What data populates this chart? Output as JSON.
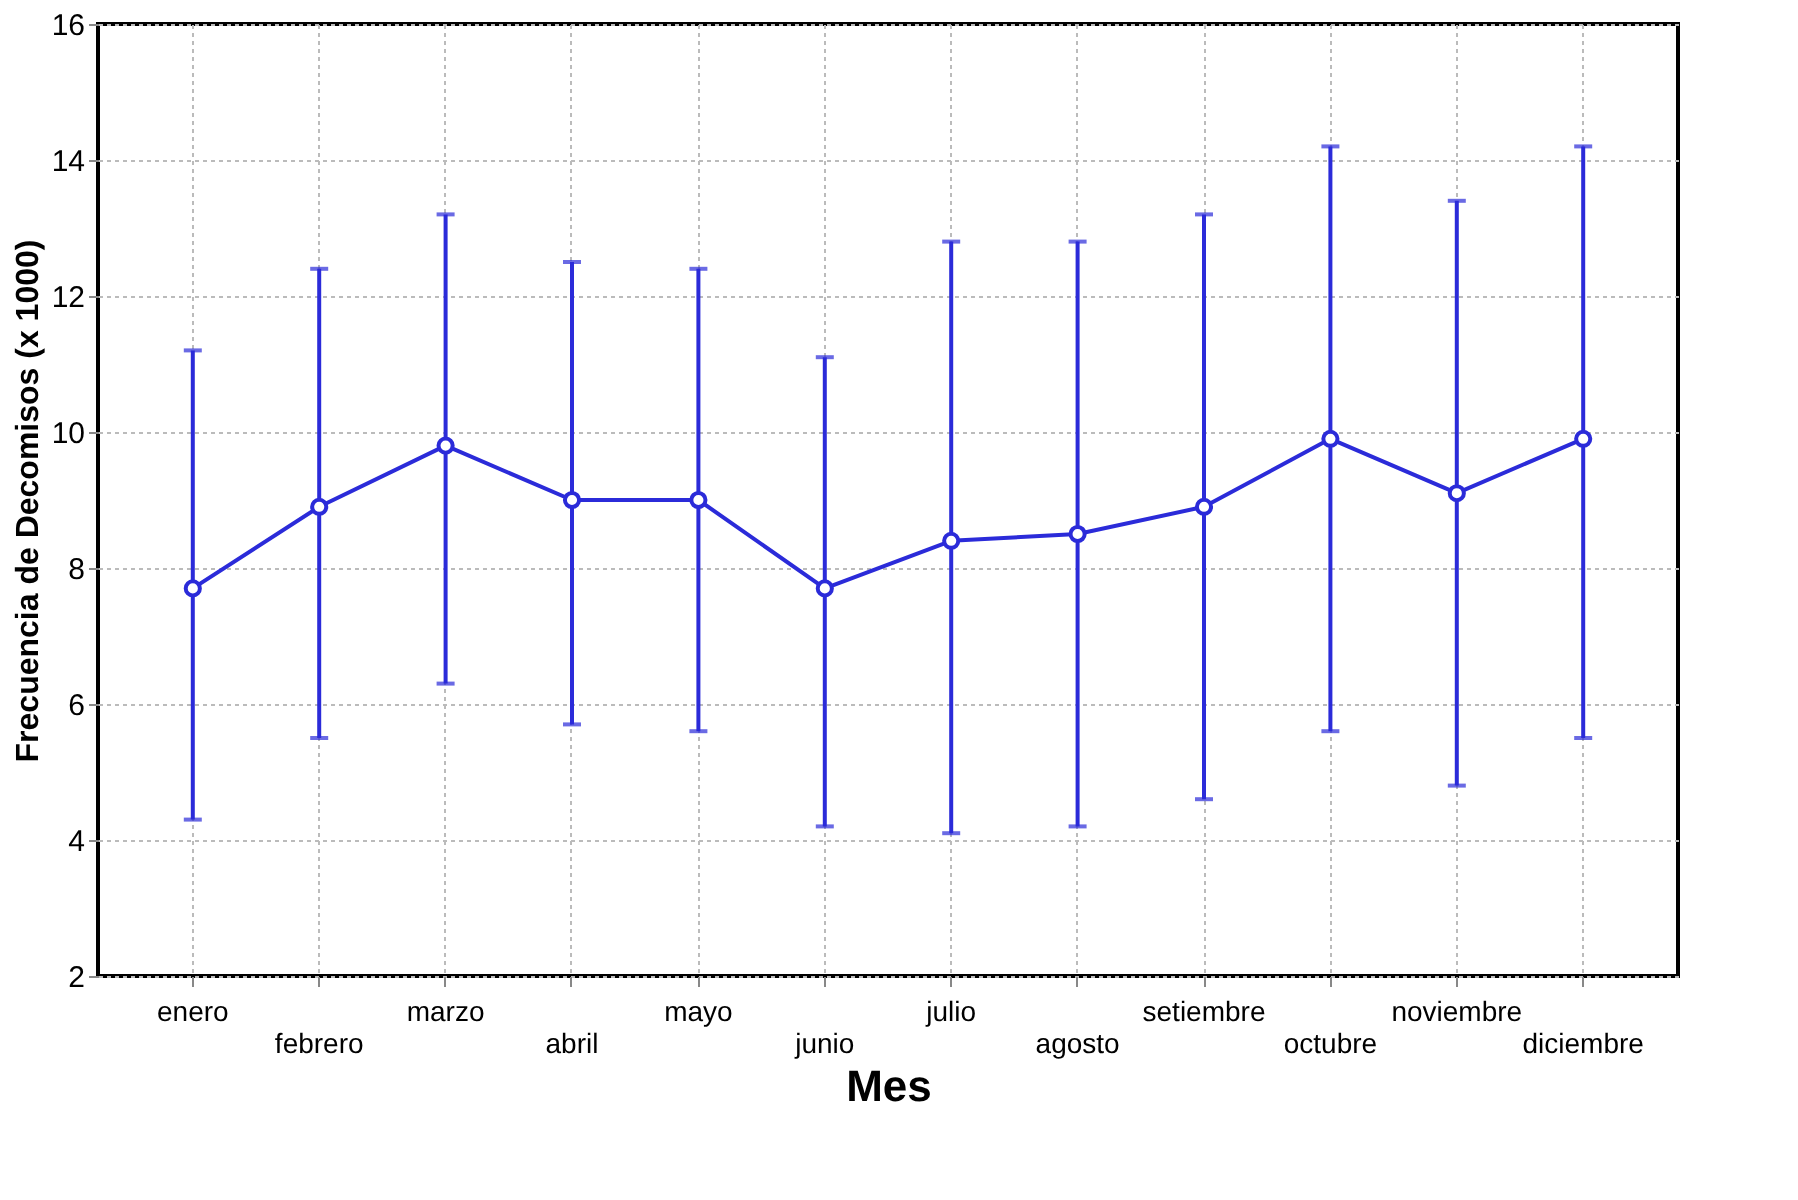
{
  "chart_data": {
    "type": "line",
    "xlabel": "Mes",
    "ylabel": "Frecuencia de Decomisos (x 1000)",
    "categories": [
      "enero",
      "febrero",
      "marzo",
      "abril",
      "mayo",
      "junio",
      "julio",
      "agosto",
      "setiembre",
      "octubre",
      "noviembre",
      "diciembre"
    ],
    "series": [
      {
        "color": "#2b2bd9",
        "values": [
          7.7,
          8.9,
          9.8,
          9.0,
          9.0,
          7.7,
          8.4,
          8.5,
          8.9,
          9.9,
          9.1,
          9.9
        ],
        "errors": [
          [
            4.3,
            11.2
          ],
          [
            5.5,
            12.4
          ],
          [
            6.3,
            13.2
          ],
          [
            5.7,
            12.5
          ],
          [
            5.6,
            12.4
          ],
          [
            4.2,
            11.1
          ],
          [
            4.1,
            12.8
          ],
          [
            4.2,
            12.8
          ],
          [
            4.6,
            13.2
          ],
          [
            5.6,
            14.2
          ],
          [
            4.8,
            13.4
          ],
          [
            5.5,
            14.2
          ]
        ]
      }
    ],
    "ylim": [
      2,
      16
    ],
    "yticks": [
      2,
      4,
      6,
      8,
      10,
      12,
      14,
      16
    ],
    "grid": true,
    "marker": "circle",
    "line_style": "solid"
  }
}
